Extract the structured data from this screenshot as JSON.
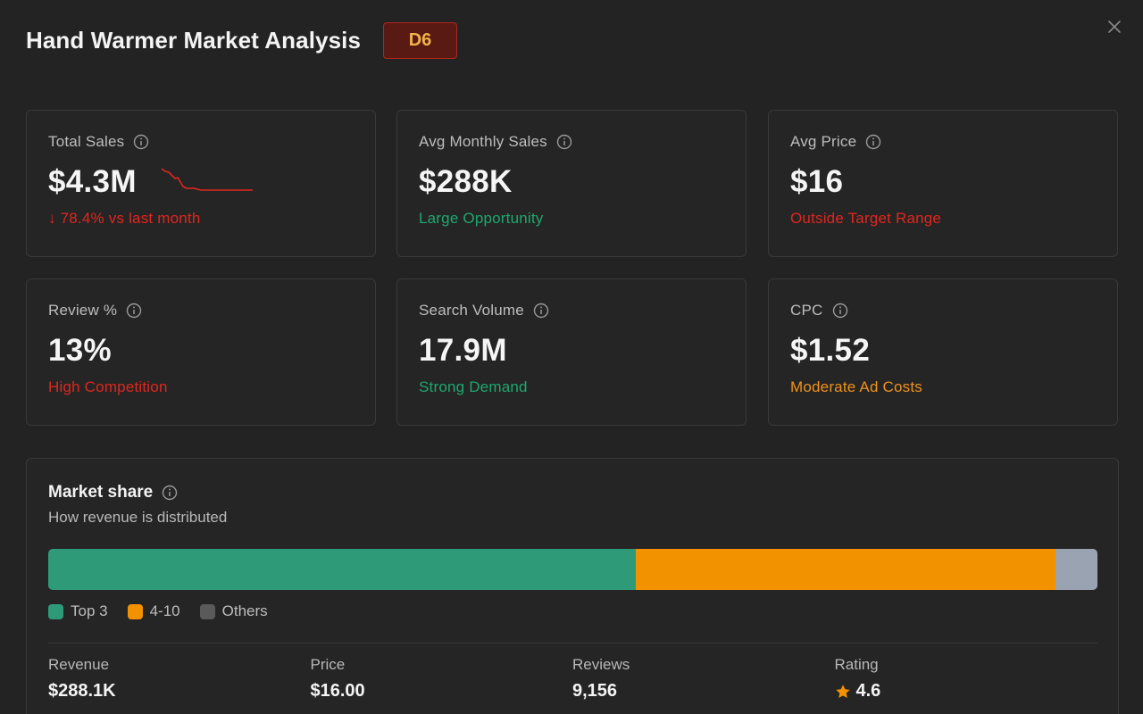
{
  "header": {
    "title": "Hand Warmer Market Analysis",
    "badge": "D6"
  },
  "metrics": [
    {
      "label": "Total Sales",
      "value": "$4.3M",
      "sub": "↓ 78.4% vs last month",
      "status": "negative"
    },
    {
      "label": "Avg Monthly Sales",
      "value": "$288K",
      "sub": "Large Opportunity",
      "status": "positive"
    },
    {
      "label": "Avg Price",
      "value": "$16",
      "sub": "Outside Target Range",
      "status": "negative"
    },
    {
      "label": "Review %",
      "value": "13%",
      "sub": "High Competition",
      "status": "negative"
    },
    {
      "label": "Search Volume",
      "value": "17.9M",
      "sub": "Strong Demand",
      "status": "positive"
    },
    {
      "label": "CPC",
      "value": "$1.52",
      "sub": "Moderate Ad Costs",
      "status": "neutral"
    }
  ],
  "colors": {
    "negative": "#e0261f",
    "positive": "#1fa86f",
    "neutral": "#f0921a",
    "top3": "#2f9a78",
    "mid": "#f39200",
    "others": "#9aa3b2"
  },
  "market_share": {
    "title": "Market share",
    "subtitle": "How revenue is distributed",
    "segments": [
      {
        "label": "Top 3",
        "percent": 56
      },
      {
        "label": "4-10",
        "percent": 40
      },
      {
        "label": "Others",
        "percent": 4
      }
    ],
    "stats": [
      {
        "label": "Revenue",
        "value": "$288.1K"
      },
      {
        "label": "Price",
        "value": "$16.00"
      },
      {
        "label": "Reviews",
        "value": "9,156"
      },
      {
        "label": "Rating",
        "value": "4.6",
        "icon": "star-icon"
      }
    ]
  }
}
